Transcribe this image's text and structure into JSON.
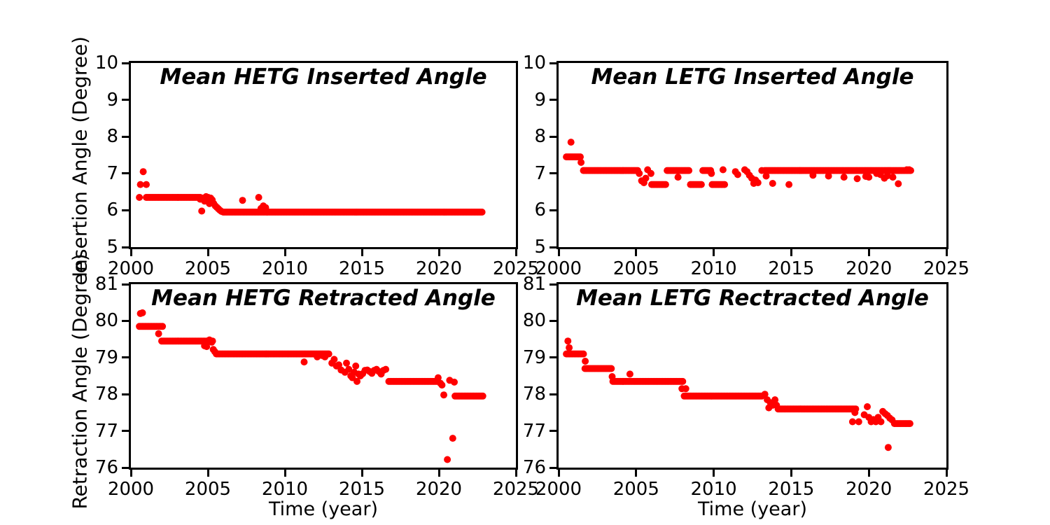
{
  "figure": {
    "background": "#ffffff",
    "marker_color": "#ff0000",
    "axis_color": "#000000"
  },
  "chart_data": [
    {
      "type": "scatter",
      "title": "Mean HETG Inserted Angle",
      "xlabel": "",
      "ylabel": "Insertion Angle (Degree)",
      "xlim": [
        2000,
        2025
      ],
      "ylim": [
        5,
        10
      ],
      "xticks": [
        2000,
        2005,
        2010,
        2015,
        2020,
        2025
      ],
      "yticks": [
        10,
        9,
        8,
        7,
        6,
        5
      ],
      "grid": false,
      "legend": null,
      "series_color": "#ff0000",
      "plateaus": [
        [
          2001.0,
          2004.55,
          6.35
        ],
        [
          2006.0,
          2022.8,
          5.95
        ]
      ],
      "points": [
        [
          2000.55,
          6.35
        ],
        [
          2000.62,
          6.7
        ],
        [
          2000.8,
          7.05
        ],
        [
          2001.0,
          6.7
        ],
        [
          2004.5,
          6.3
        ],
        [
          2004.6,
          5.98
        ],
        [
          2004.68,
          6.33
        ],
        [
          2004.78,
          6.25
        ],
        [
          2004.88,
          6.37
        ],
        [
          2004.95,
          6.3
        ],
        [
          2005.02,
          6.35
        ],
        [
          2005.1,
          6.18
        ],
        [
          2005.18,
          6.33
        ],
        [
          2005.28,
          6.28
        ],
        [
          2005.38,
          6.18
        ],
        [
          2005.48,
          6.12
        ],
        [
          2005.58,
          6.08
        ],
        [
          2005.68,
          6.04
        ],
        [
          2005.78,
          6.0
        ],
        [
          2005.88,
          5.97
        ],
        [
          2007.25,
          6.27
        ],
        [
          2008.3,
          6.35
        ],
        [
          2008.45,
          6.05
        ],
        [
          2008.6,
          6.12
        ],
        [
          2008.75,
          6.07
        ]
      ]
    },
    {
      "type": "scatter",
      "title": "Mean LETG Inserted Angle",
      "xlabel": "",
      "ylabel": "",
      "xlim": [
        2000,
        2025
      ],
      "ylim": [
        5,
        10
      ],
      "xticks": [
        2000,
        2005,
        2010,
        2015,
        2020,
        2025
      ],
      "yticks": [
        10,
        9,
        8,
        7,
        6,
        5
      ],
      "grid": false,
      "legend": null,
      "series_color": "#ff0000",
      "plateaus": [
        [
          2000.5,
          2001.4,
          7.45
        ],
        [
          2001.6,
          2005.1,
          7.08
        ],
        [
          2006.0,
          2006.9,
          6.7
        ],
        [
          2007.0,
          2008.4,
          7.08
        ],
        [
          2008.5,
          2009.2,
          6.7
        ],
        [
          2009.3,
          2009.8,
          7.08
        ],
        [
          2009.9,
          2010.7,
          6.7
        ],
        [
          2013.3,
          2022.7,
          7.08
        ]
      ],
      "points": [
        [
          2000.8,
          7.85
        ],
        [
          2001.45,
          7.3
        ],
        [
          2005.2,
          7.0
        ],
        [
          2005.35,
          6.8
        ],
        [
          2005.5,
          6.75
        ],
        [
          2005.62,
          6.87
        ],
        [
          2005.74,
          7.1
        ],
        [
          2005.95,
          7.0
        ],
        [
          2007.7,
          6.9
        ],
        [
          2009.85,
          7.0
        ],
        [
          2010.6,
          7.1
        ],
        [
          2011.4,
          7.05
        ],
        [
          2011.55,
          6.97
        ],
        [
          2012.0,
          7.1
        ],
        [
          2012.15,
          7.05
        ],
        [
          2012.3,
          6.95
        ],
        [
          2012.45,
          6.87
        ],
        [
          2012.58,
          6.73
        ],
        [
          2012.7,
          6.82
        ],
        [
          2012.85,
          6.75
        ],
        [
          2013.1,
          7.08
        ],
        [
          2013.38,
          6.93
        ],
        [
          2013.8,
          6.73
        ],
        [
          2014.85,
          6.7
        ],
        [
          2016.4,
          6.95
        ],
        [
          2017.4,
          6.93
        ],
        [
          2018.4,
          6.9
        ],
        [
          2019.25,
          6.86
        ],
        [
          2019.8,
          6.92
        ],
        [
          2020.0,
          6.9
        ],
        [
          2020.5,
          7.0
        ],
        [
          2020.75,
          6.97
        ],
        [
          2021.0,
          6.87
        ],
        [
          2021.2,
          6.94
        ],
        [
          2021.55,
          6.9
        ],
        [
          2021.9,
          6.72
        ],
        [
          2022.45,
          7.1
        ],
        [
          2022.6,
          7.1
        ]
      ]
    },
    {
      "type": "scatter",
      "title": "Mean HETG Retracted Angle",
      "xlabel": "Time (year)",
      "ylabel": "Retraction Angle (Degree)",
      "xlim": [
        2000,
        2025
      ],
      "ylim": [
        76,
        81
      ],
      "xticks": [
        2000,
        2005,
        2010,
        2015,
        2020,
        2025
      ],
      "yticks": [
        81,
        80,
        79,
        78,
        77,
        76
      ],
      "grid": false,
      "legend": null,
      "series_color": "#ff0000",
      "plateaus": [
        [
          2000.55,
          2002.05,
          79.85
        ],
        [
          2002.0,
          2005.3,
          79.45
        ],
        [
          2005.55,
          2012.9,
          79.1
        ],
        [
          2016.75,
          2019.9,
          78.35
        ],
        [
          2021.05,
          2022.9,
          77.95
        ]
      ],
      "points": [
        [
          2000.62,
          80.2
        ],
        [
          2000.75,
          80.22
        ],
        [
          2001.8,
          79.65
        ],
        [
          2004.78,
          79.32
        ],
        [
          2004.92,
          79.3
        ],
        [
          2005.1,
          79.48
        ],
        [
          2005.25,
          79.42
        ],
        [
          2005.35,
          79.22
        ],
        [
          2005.45,
          79.16
        ],
        [
          2011.25,
          78.88
        ],
        [
          2012.1,
          79.02
        ],
        [
          2012.4,
          79.06
        ],
        [
          2012.6,
          79.02
        ],
        [
          2013.05,
          78.85
        ],
        [
          2013.2,
          78.95
        ],
        [
          2013.35,
          78.77
        ],
        [
          2013.5,
          78.8
        ],
        [
          2013.65,
          78.66
        ],
        [
          2013.9,
          78.6
        ],
        [
          2014.0,
          78.85
        ],
        [
          2014.15,
          78.68
        ],
        [
          2014.28,
          78.5
        ],
        [
          2014.38,
          78.45
        ],
        [
          2014.5,
          78.6
        ],
        [
          2014.6,
          78.77
        ],
        [
          2014.68,
          78.35
        ],
        [
          2014.78,
          78.55
        ],
        [
          2014.9,
          78.5
        ],
        [
          2015.05,
          78.56
        ],
        [
          2015.2,
          78.65
        ],
        [
          2015.35,
          78.66
        ],
        [
          2015.5,
          78.62
        ],
        [
          2015.65,
          78.57
        ],
        [
          2015.8,
          78.65
        ],
        [
          2015.95,
          78.68
        ],
        [
          2016.1,
          78.62
        ],
        [
          2016.25,
          78.55
        ],
        [
          2016.4,
          78.65
        ],
        [
          2016.55,
          78.68
        ],
        [
          2019.95,
          78.45
        ],
        [
          2020.1,
          78.3
        ],
        [
          2020.2,
          78.25
        ],
        [
          2020.32,
          77.98
        ],
        [
          2020.55,
          76.22
        ],
        [
          2020.9,
          76.8
        ],
        [
          2020.7,
          78.38
        ],
        [
          2021.0,
          78.33
        ]
      ]
    },
    {
      "type": "scatter",
      "title": "Mean LETG Rectracted Angle",
      "xlabel": "Time (year)",
      "ylabel": "",
      "xlim": [
        2000,
        2025
      ],
      "ylim": [
        76,
        81
      ],
      "xticks": [
        2000,
        2005,
        2010,
        2015,
        2020,
        2025
      ],
      "yticks": [
        81,
        80,
        79,
        78,
        77,
        76
      ],
      "grid": false,
      "legend": null,
      "series_color": "#ff0000",
      "plateaus": [
        [
          2000.5,
          2001.65,
          79.1
        ],
        [
          2001.7,
          2003.4,
          78.7
        ],
        [
          2003.5,
          2008.0,
          78.35
        ],
        [
          2008.1,
          2013.1,
          77.95
        ],
        [
          2014.15,
          2019.2,
          77.6
        ],
        [
          2021.65,
          2022.7,
          77.2
        ]
      ],
      "points": [
        [
          2000.6,
          79.45
        ],
        [
          2000.68,
          79.27
        ],
        [
          2001.72,
          78.9
        ],
        [
          2003.45,
          78.48
        ],
        [
          2004.6,
          78.55
        ],
        [
          2007.95,
          78.15
        ],
        [
          2008.2,
          78.15
        ],
        [
          2013.3,
          78.0
        ],
        [
          2013.45,
          77.85
        ],
        [
          2013.55,
          77.63
        ],
        [
          2013.65,
          77.77
        ],
        [
          2013.8,
          77.7
        ],
        [
          2013.95,
          77.85
        ],
        [
          2014.05,
          77.7
        ],
        [
          2018.95,
          77.25
        ],
        [
          2019.1,
          77.5
        ],
        [
          2019.35,
          77.25
        ],
        [
          2019.7,
          77.44
        ],
        [
          2019.9,
          77.66
        ],
        [
          2020.0,
          77.37
        ],
        [
          2020.15,
          77.25
        ],
        [
          2020.3,
          77.31
        ],
        [
          2020.45,
          77.25
        ],
        [
          2020.6,
          77.37
        ],
        [
          2020.78,
          77.25
        ],
        [
          2020.9,
          77.53
        ],
        [
          2021.05,
          77.47
        ],
        [
          2021.2,
          77.42
        ],
        [
          2021.35,
          77.35
        ],
        [
          2021.5,
          77.3
        ],
        [
          2021.25,
          76.55
        ]
      ]
    }
  ]
}
